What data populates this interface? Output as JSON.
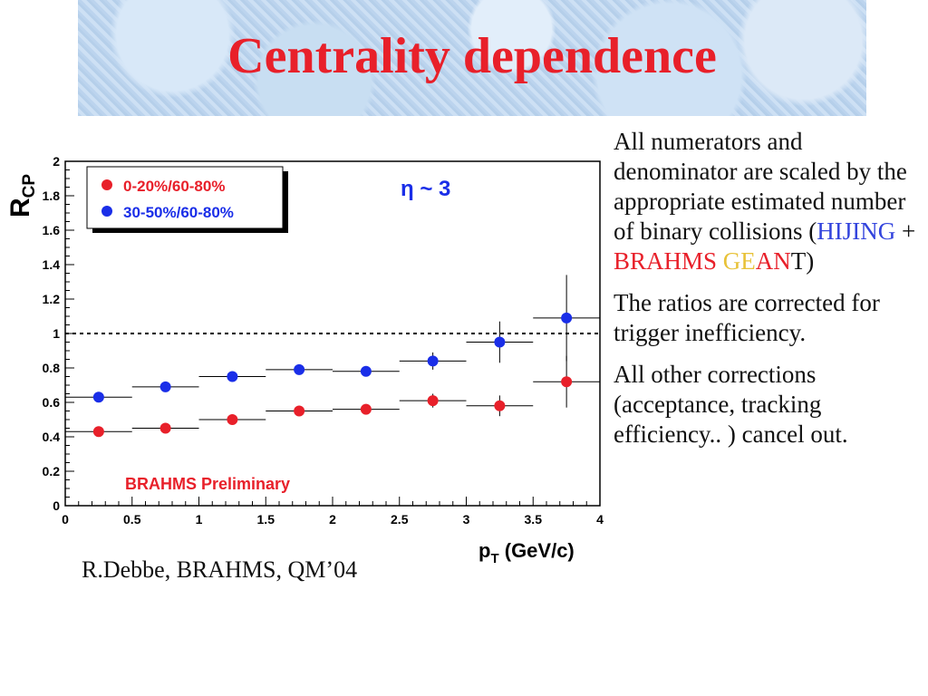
{
  "slide": {
    "title": "Centrality dependence",
    "citation": "R.Debbe, BRAHMS, QM’04",
    "notes": {
      "p1_a": "All numerators and denominator are scaled by the appropriate estimated number of binary collisions (",
      "hijing": "HIJING",
      "plus": " + ",
      "brahms": "BRAHMS",
      "ge": "GE",
      "an": "AN",
      "t_close": "T)",
      "p2": "The ratios are corrected for trigger inefficiency.",
      "p3": "All other corrections (acceptance, tracking efficiency.. ) cancel out."
    }
  },
  "colors": {
    "red": "#e8202a",
    "blue": "#1a2ee8",
    "title": "#e8202a",
    "hijing": "#3344dd",
    "geant_yellow": "#e8c238"
  },
  "chart_data": {
    "type": "scatter",
    "ylabel_main": "R",
    "ylabel_sub": "CP",
    "xlabel": "p",
    "xlabel_sub": "T",
    "xlabel_unit": " (GeV/c)",
    "annotation_eta": "η ~ 3",
    "watermark": "BRAHMS Preliminary",
    "xlim": [
      0,
      4
    ],
    "ylim": [
      0,
      2
    ],
    "x_ticks": [
      "0",
      "0.5",
      "1",
      "1.5",
      "2",
      "2.5",
      "3",
      "3.5",
      "4"
    ],
    "y_ticks": [
      "0",
      "0.2",
      "0.4",
      "0.6",
      "0.8",
      "1",
      "1.2",
      "1.4",
      "1.6",
      "1.8",
      "2"
    ],
    "reference_line": 1,
    "legend_position": "top-left",
    "series": [
      {
        "name": "0-20%/60-80%",
        "color": "#e8202a",
        "x": [
          0.25,
          0.75,
          1.25,
          1.75,
          2.25,
          2.75,
          3.25,
          3.75
        ],
        "y": [
          0.43,
          0.45,
          0.5,
          0.55,
          0.56,
          0.61,
          0.58,
          0.72
        ],
        "yerr": [
          0.01,
          0.02,
          0.01,
          0.02,
          0.02,
          0.04,
          0.06,
          0.15
        ]
      },
      {
        "name": "30-50%/60-80%",
        "color": "#1a2ee8",
        "x": [
          0.25,
          0.75,
          1.25,
          1.75,
          2.25,
          2.75,
          3.25,
          3.75
        ],
        "y": [
          0.63,
          0.69,
          0.75,
          0.79,
          0.78,
          0.84,
          0.95,
          1.09
        ],
        "yerr": [
          0.01,
          0.02,
          0.02,
          0.02,
          0.03,
          0.05,
          0.12,
          0.25
        ]
      }
    ]
  }
}
